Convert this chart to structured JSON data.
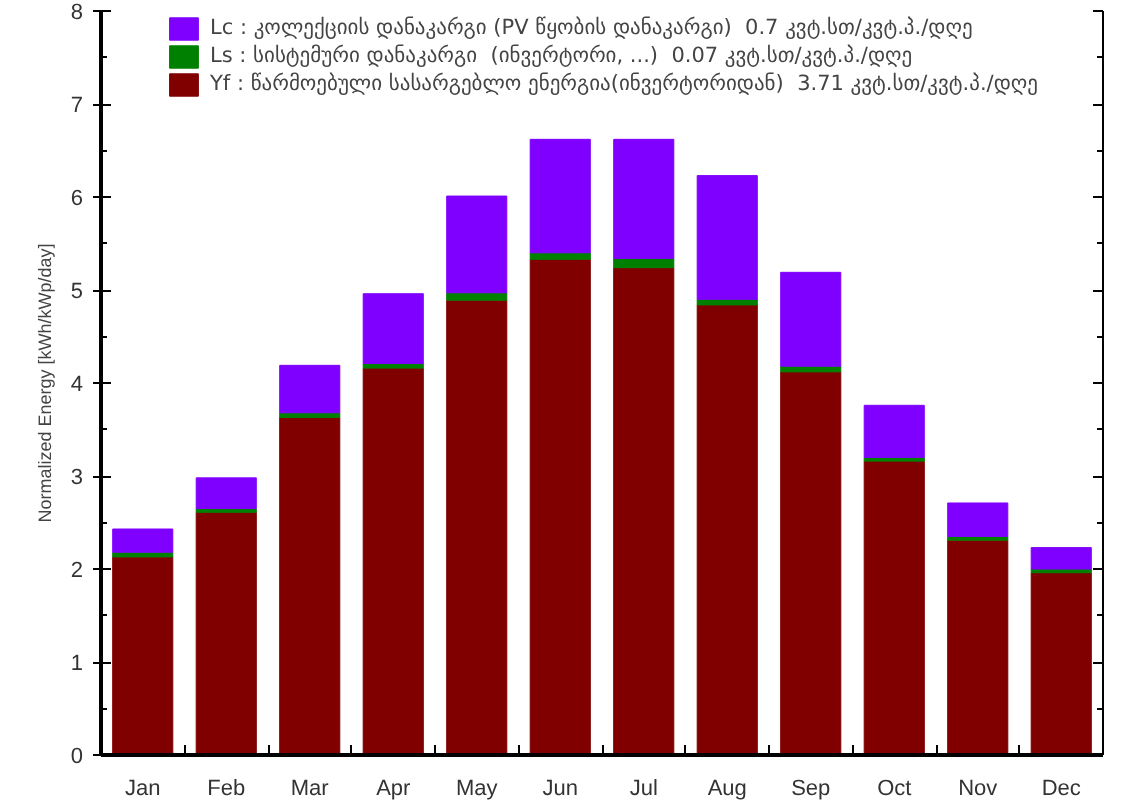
{
  "chart_data": {
    "type": "bar",
    "stacked": true,
    "ylabel": "Normalized Energy [kWh/kWp/day]",
    "categories": [
      "Jan",
      "Feb",
      "Mar",
      "Apr",
      "May",
      "Jun",
      "Jul",
      "Aug",
      "Sep",
      "Oct",
      "Nov",
      "Dec"
    ],
    "series": [
      {
        "name": "Yf : წარმოებული სასარგებლო ენერგია(ინვერტორიდან)  3.71 კვტ.სთ/კვტ.პ./დღე",
        "color": "#800000",
        "values": [
          2.13,
          2.61,
          3.63,
          4.16,
          4.89,
          5.33,
          5.24,
          4.84,
          4.12,
          3.16,
          2.31,
          1.96
        ]
      },
      {
        "name": "Ls : სისტემური დანაკარგი  (ინვერტორი, ...)  0.07 კვტ.სთ/კვტ.პ./დღე",
        "color": "#008000",
        "values": [
          0.05,
          0.04,
          0.05,
          0.05,
          0.08,
          0.07,
          0.1,
          0.06,
          0.06,
          0.04,
          0.04,
          0.04
        ]
      },
      {
        "name": "Lc : კოლექციის დანაკარგი (PV წყობის დანაკარგი)  0.7 კვტ.სთ/კვტ.პ./დღე",
        "color": "#8000ff",
        "values": [
          0.25,
          0.33,
          0.51,
          0.75,
          1.04,
          1.22,
          1.28,
          1.33,
          1.01,
          0.56,
          0.36,
          0.23
        ]
      }
    ],
    "ylim": [
      0,
      8
    ],
    "yticks": [
      0,
      1,
      2,
      3,
      4,
      5,
      6,
      7,
      8
    ],
    "grid": false,
    "legend": "top"
  }
}
